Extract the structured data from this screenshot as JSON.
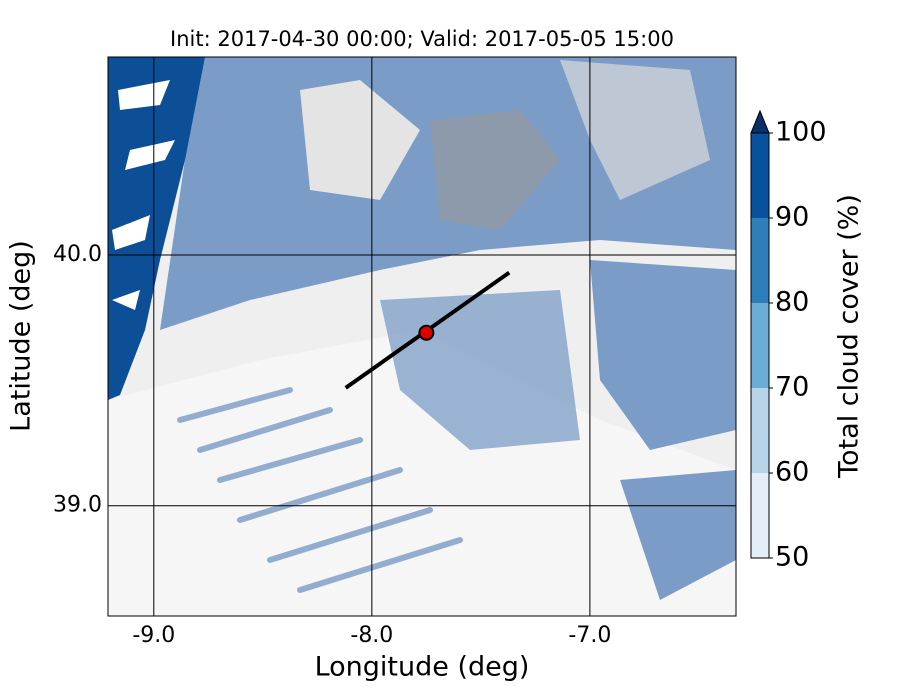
{
  "chart_data": {
    "type": "map",
    "title": "Init: 2017-04-30 00:00; Valid: 2017-05-05 15:00",
    "xlabel": "Longitude (deg)",
    "ylabel": "Latitude (deg)",
    "xlim": [
      -9.21,
      -6.33
    ],
    "ylim": [
      38.56,
      40.79
    ],
    "xticks": [
      {
        "value": -9,
        "label": "-9.0"
      },
      {
        "value": -8,
        "label": "-8.0"
      },
      {
        "value": -7,
        "label": "-7.0"
      }
    ],
    "yticks": [
      {
        "value": 39,
        "label": "39.0"
      },
      {
        "value": 40,
        "label": "40.0"
      }
    ],
    "grid": true,
    "transect": {
      "x": [
        -8.12,
        -7.37
      ],
      "y": [
        39.47,
        39.93
      ],
      "color": "#000000"
    },
    "marker": {
      "x": -7.75,
      "y": 39.69,
      "color": "#e00000"
    },
    "colorbar": {
      "label": "Total cloud cover (%)",
      "levels": [
        50,
        60,
        70,
        80,
        90,
        100
      ],
      "colors": [
        "#e3eef8",
        "#b7d4ea",
        "#6aaed6",
        "#2e7ebc",
        "#08519c"
      ],
      "extend": "max",
      "extend_color": "#08306b",
      "ticks": [
        50,
        60,
        70,
        80,
        90,
        100
      ]
    }
  }
}
